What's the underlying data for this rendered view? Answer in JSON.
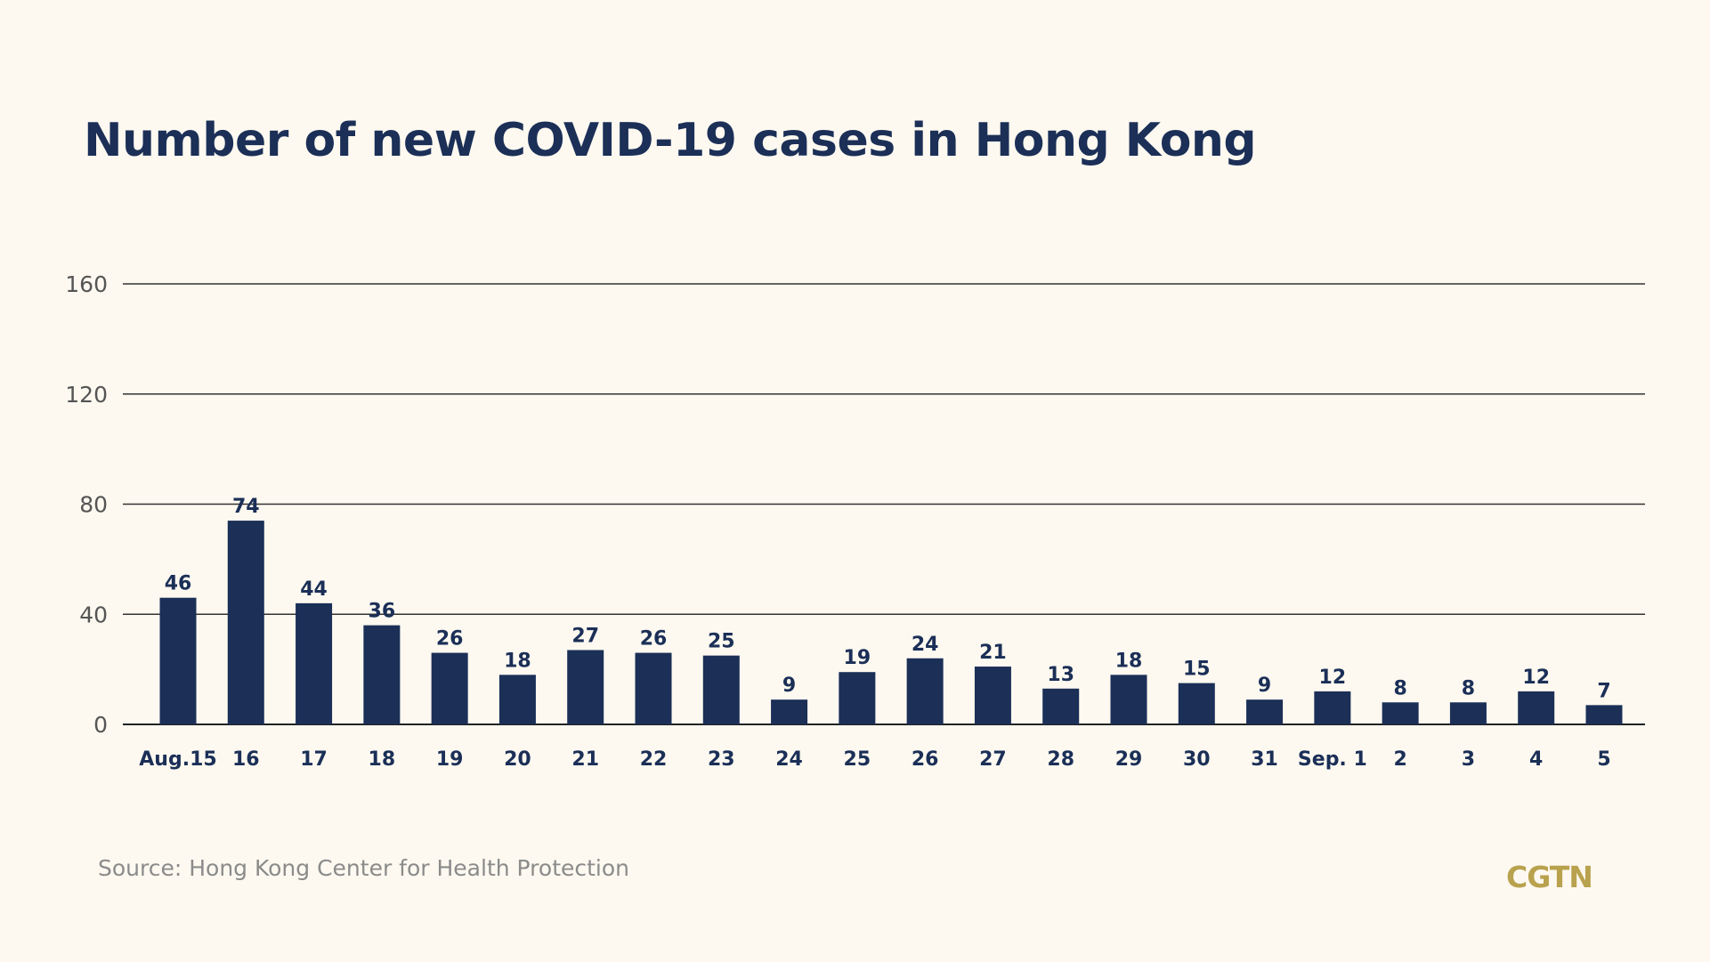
{
  "title": "Number of new COVID-19 cases in Hong Kong",
  "source": "Source: Hong Kong Center for Health Protection",
  "logo": "CGTN",
  "colors": {
    "background": "#fdf9f0",
    "bar": "#1b2f57",
    "title": "#1b2f57",
    "logo": "#b9a24e",
    "gridline": "#333333"
  },
  "chart_data": {
    "type": "bar",
    "title": "Number of new COVID-19 cases in Hong Kong",
    "xlabel": "",
    "ylabel": "",
    "ylim": [
      0,
      160
    ],
    "yticks": [
      0,
      40,
      80,
      120,
      160
    ],
    "grid": true,
    "categories": [
      "Aug.15",
      "16",
      "17",
      "18",
      "19",
      "20",
      "21",
      "22",
      "23",
      "24",
      "25",
      "26",
      "27",
      "28",
      "29",
      "30",
      "31",
      "Sep. 1",
      "2",
      "3",
      "4",
      "5"
    ],
    "values": [
      46,
      74,
      44,
      36,
      26,
      18,
      27,
      26,
      25,
      9,
      19,
      24,
      21,
      13,
      18,
      15,
      9,
      12,
      8,
      8,
      12,
      7
    ]
  }
}
